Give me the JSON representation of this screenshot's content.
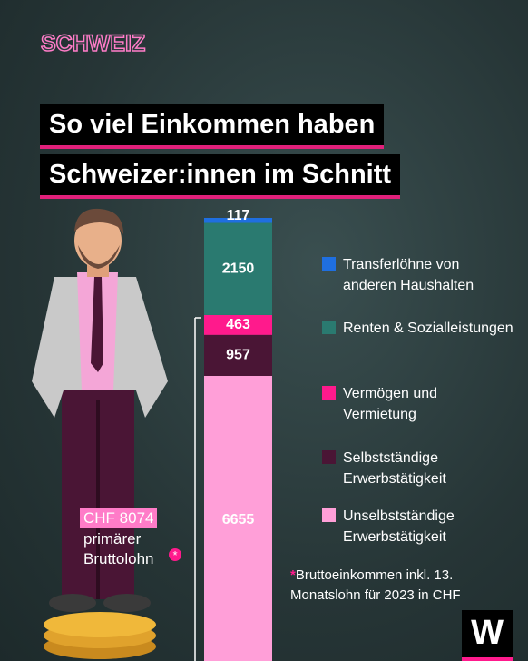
{
  "brand": "SCHWEIZ",
  "title_lines": [
    "So viel Einkommen haben",
    "Schweizer:innen im Schnitt"
  ],
  "chart_data": {
    "type": "stacked-bar",
    "series": [
      {
        "name": "Transferlöhne von anderen Haushalten",
        "color": "#1f6fe0",
        "values": [
          117
        ]
      },
      {
        "name": "Renten & Sozialleistungen",
        "color": "#2a7a70",
        "values": [
          2150
        ]
      },
      {
        "name": "Vermögen und Vermietung",
        "color": "#ff1a8c",
        "values": [
          463
        ]
      },
      {
        "name": "Selbstständige Erwerbstätigkeit",
        "color": "#4a1535",
        "values": [
          957
        ]
      },
      {
        "name": "Unselbstständige Erwerbstätigkeit",
        "color": "#ff9fd8",
        "values": [
          6655
        ]
      }
    ],
    "annotation": {
      "highlight": "CHF 8074",
      "lines": [
        "primärer",
        "Bruttolohn"
      ],
      "marker": "*"
    },
    "footnote": {
      "marker": "*",
      "text": "Bruttoeinkommen inkl. 13. Monatslohn für 2023 in CHF"
    }
  },
  "logo": "W"
}
